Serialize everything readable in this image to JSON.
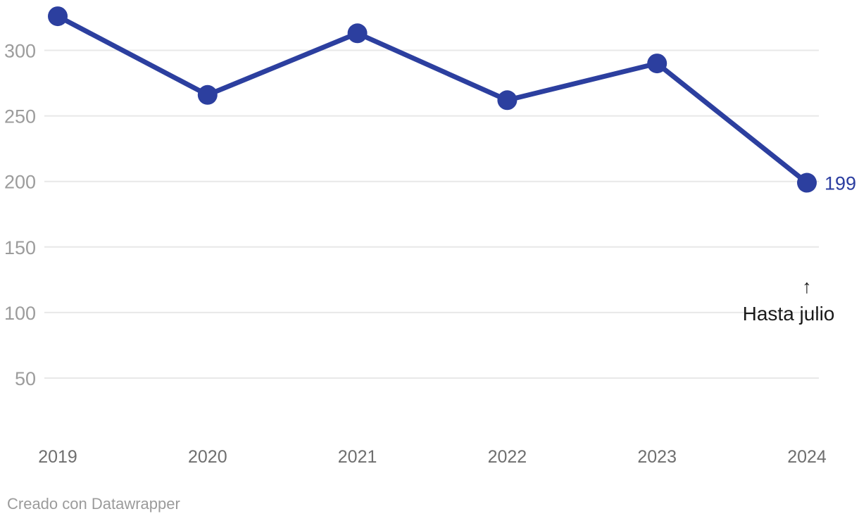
{
  "chart_data": {
    "type": "line",
    "title": "",
    "categories": [
      "2019",
      "2020",
      "2021",
      "2022",
      "2023",
      "2024"
    ],
    "values": [
      326,
      266,
      313,
      262,
      290,
      199
    ],
    "yticks": [
      300,
      250,
      200,
      150,
      100,
      50
    ],
    "ylim": [
      0,
      340
    ],
    "xlabel": "",
    "ylabel": "",
    "grid": "horizontal",
    "legend": "none",
    "last_value_label": "199",
    "annotation": {
      "arrow": "↑",
      "text": "Hasta julio"
    },
    "colors": {
      "line": "#2c3f9f",
      "point": "#2c3f9f",
      "grid": "#e8e8e8",
      "y_tick_label": "#9c9c9c",
      "x_tick_label": "#6f6f6f",
      "value_label": "#2b3da0",
      "annotation": "#1a1a1a"
    }
  },
  "footer": {
    "credit": "Creado con Datawrapper",
    "color": "#9b9b9b"
  }
}
